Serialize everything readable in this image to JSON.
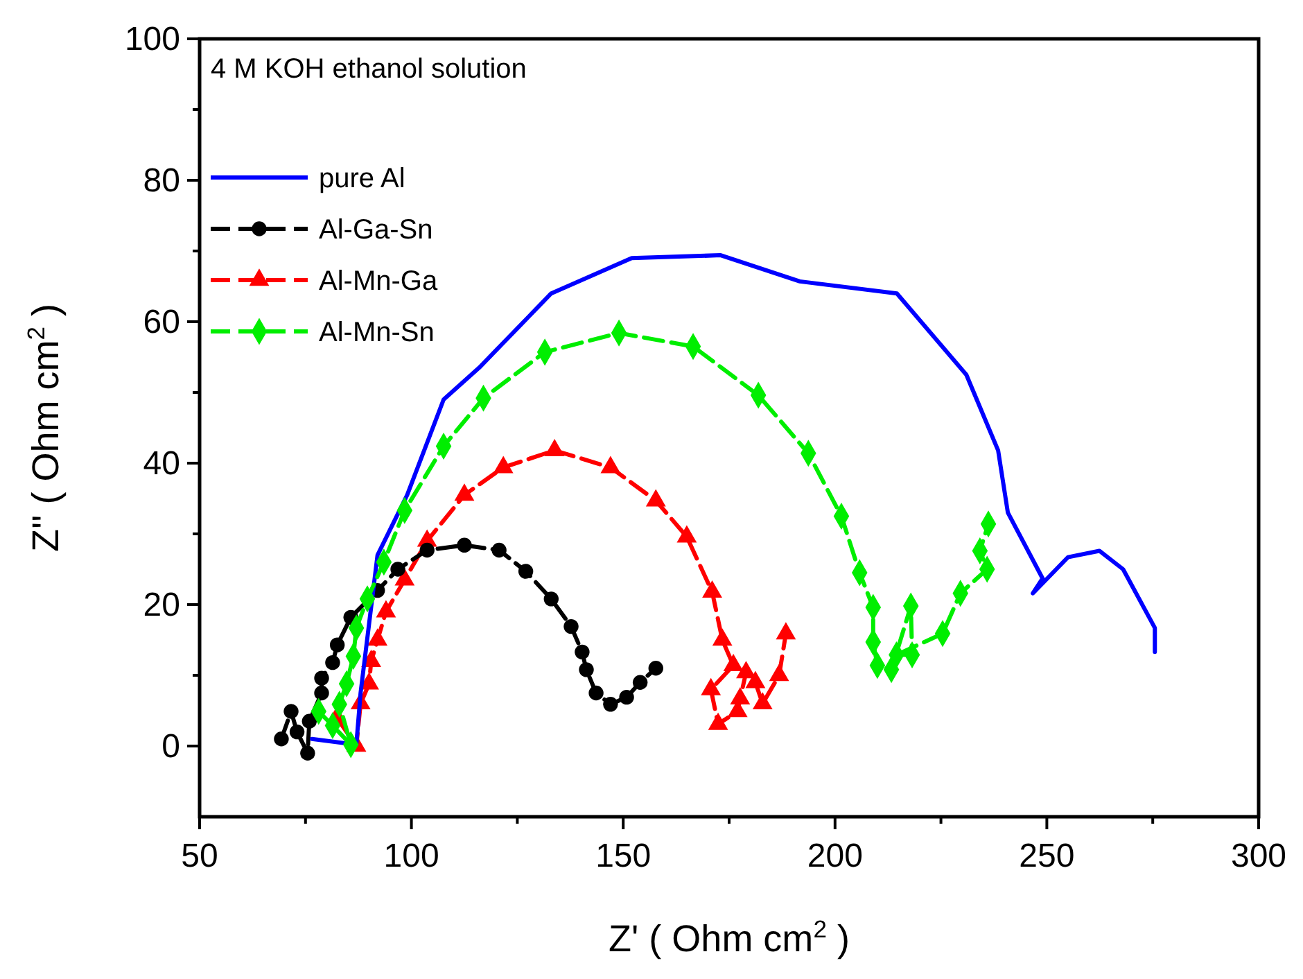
{
  "chart_data": {
    "type": "line",
    "annotations": [
      "4 M KOH ethanol solution"
    ],
    "xlabel": "Z' ( Ohm cm$^{2}$ )",
    "ylabel": "Z'' ( Ohm cm$^{2}$ )",
    "xlim": [
      50,
      300
    ],
    "ylim": [
      -10,
      100
    ],
    "xticks": [
      50,
      {
        "value": 75,
        "label": null
      },
      100,
      {
        "value": 125,
        "label": null
      },
      150,
      {
        "value": 175,
        "label": null
      },
      200,
      {
        "value": 225,
        "label": null
      },
      250,
      {
        "value": 275,
        "label": null
      },
      300
    ],
    "yticks": [
      0,
      {
        "value": 10,
        "label": null
      },
      20,
      {
        "value": 30,
        "label": null
      },
      40,
      {
        "value": 50,
        "label": null
      },
      60,
      {
        "value": 70,
        "label": null
      },
      80,
      {
        "value": 90,
        "label": null
      },
      100
    ],
    "grid": false,
    "legend": "top left",
    "series": [
      {
        "name": "pure Al",
        "color": "#0000ff",
        "marker": "none",
        "line_style": "solid",
        "x": [
          76.5,
          87,
          88,
          92,
          99,
          107.6,
          116,
          133,
          152,
          173,
          191.7,
          214.6,
          231,
          238.5,
          240.8,
          249,
          246.7,
          255,
          262.4,
          268,
          275.5,
          275.5
        ],
        "values": [
          1,
          0.2,
          7.5,
          27,
          35.5,
          49,
          53.5,
          64,
          69,
          69.4,
          65.7,
          64,
          52.5,
          41.8,
          33,
          23.7,
          21.6,
          26.7,
          27.6,
          25,
          16.7,
          13.3
        ]
      },
      {
        "name": "Al-Ga-Sn",
        "color": "#000000",
        "marker": "circle",
        "line_style": "dashed",
        "x": [
          69.3,
          71.6,
          73,
          75.5,
          75.9,
          78.8,
          78.8,
          81.4,
          82.5,
          85.7,
          92,
          96.8,
          103.7,
          112.5,
          120.7,
          127,
          133,
          137.7,
          140.3,
          141.3,
          143.6,
          147,
          150.8,
          154,
          157.7
        ],
        "values": [
          1,
          4.9,
          2,
          -1,
          3.5,
          7.5,
          9.6,
          11.8,
          14.3,
          18.2,
          22,
          25,
          27.7,
          28.4,
          27.7,
          24.7,
          20.8,
          16.9,
          13.3,
          10.8,
          7.5,
          5.9,
          6.9,
          9,
          11
        ]
      },
      {
        "name": "Al-Mn-Ga",
        "color": "#ff0000",
        "marker": "triangle",
        "line_style": "dashed",
        "x": [
          82.4,
          87,
          88,
          90,
          90.5,
          92,
          94,
          98.4,
          103.7,
          112.5,
          121.7,
          133.8,
          147,
          157.7,
          165,
          171,
          173.4,
          176,
          170.7,
          172.4,
          177,
          177.6,
          179,
          181.2,
          182.9,
          186.8,
          188.4
        ],
        "values": [
          4,
          0,
          6,
          8.8,
          12,
          15,
          19,
          23.5,
          29,
          35.5,
          39.4,
          41.8,
          39.4,
          34.7,
          29.6,
          21.8,
          15,
          11.4,
          8,
          3.1,
          4.9,
          6.7,
          10.4,
          9,
          6,
          10,
          15.9
        ]
      },
      {
        "name": "Al-Mn-Sn",
        "color": "#00ee00",
        "marker": "diamond",
        "line_style": "dashed",
        "x": [
          78.1,
          81.4,
          85.7,
          83,
          84.7,
          86.3,
          87,
          89.6,
          93.5,
          98.4,
          107.6,
          117,
          131.5,
          149,
          166.5,
          181.9,
          193.7,
          201.5,
          205.8,
          209,
          209,
          210,
          213.3,
          217.9,
          218.2,
          214.5,
          225.4,
          229.6,
          235.9,
          234.2,
          236.2
        ],
        "values": [
          4.9,
          2.9,
          0.2,
          5.9,
          8.8,
          12.7,
          16.7,
          20.8,
          26,
          33.3,
          42.4,
          49.2,
          55.7,
          58.4,
          56.5,
          49.6,
          41.4,
          32.5,
          24.5,
          19.6,
          14.7,
          11.4,
          10.8,
          19.8,
          12.9,
          12.9,
          15.9,
          21.6,
          25,
          27.6,
          31.4
        ]
      }
    ]
  }
}
